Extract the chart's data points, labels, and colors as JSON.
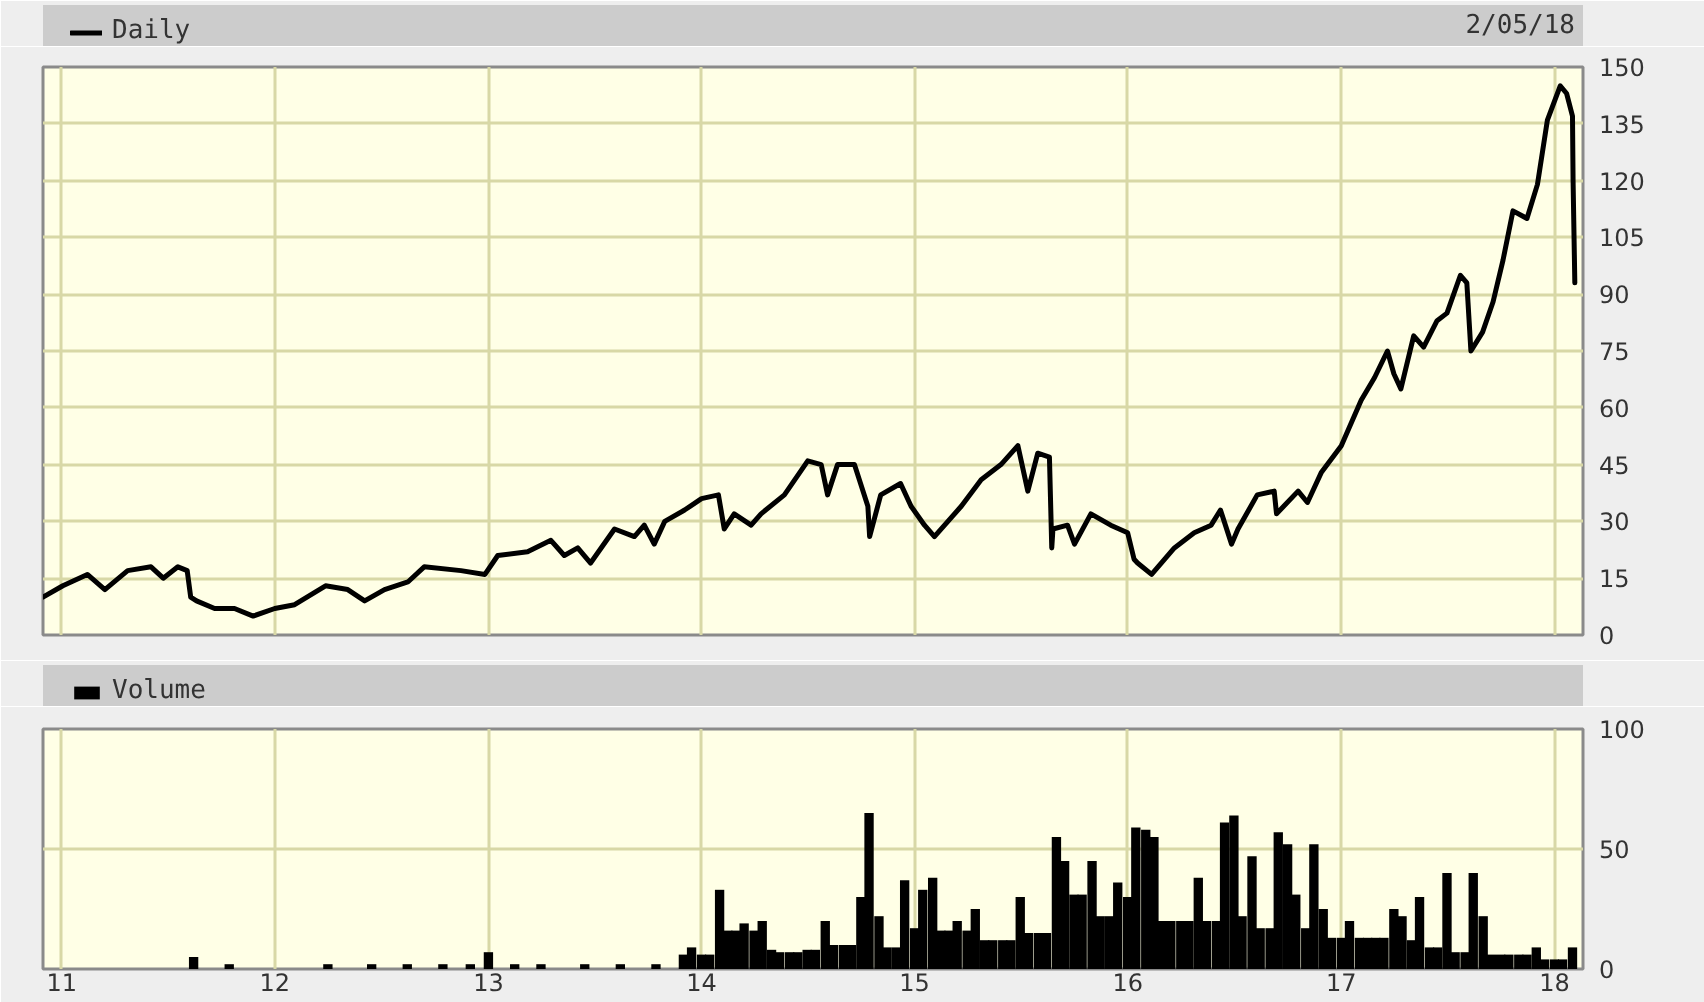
{
  "chart_data": [
    {
      "type": "line",
      "subtitle": "2/05/18",
      "legend": "top left",
      "grid": true,
      "tick_labels": "y",
      "xlim": [
        "2010-11-30",
        "2018-02-19"
      ],
      "xticks": [
        {
          "value": "2011-01-01",
          "label": null
        },
        {
          "value": "2012-01-01",
          "label": null
        },
        {
          "value": "2013-01-01",
          "label": null
        },
        {
          "value": "2014-01-01",
          "label": null
        },
        {
          "value": "2015-01-01",
          "label": null
        },
        {
          "value": "2016-01-01",
          "label": null
        },
        {
          "value": "2017-01-01",
          "label": null
        },
        {
          "value": "2018-01-01",
          "label": null
        }
      ],
      "ylim": [
        0,
        150
      ],
      "yticks": [
        0,
        15,
        30,
        45,
        60,
        75,
        90,
        105,
        120,
        135,
        150
      ],
      "x": [
        "2010-11-30",
        "2011-01-03",
        "2011-02-14",
        "2011-03-16",
        "2011-04-24",
        "2011-06-03",
        "2011-06-24",
        "2011-07-19",
        "2011-08-04",
        "2011-08-10",
        "2011-08-20",
        "2011-09-20",
        "2011-10-24",
        "2011-11-25",
        "2012-01-01",
        "2012-02-04",
        "2012-03-28",
        "2012-05-05",
        "2012-06-03",
        "2012-07-07",
        "2012-08-16",
        "2012-09-13",
        "2012-11-15",
        "2012-12-26",
        "2013-01-17",
        "2013-03-09",
        "2013-04-18",
        "2013-05-11",
        "2013-06-03",
        "2013-06-25",
        "2013-08-05",
        "2013-09-08",
        "2013-09-25",
        "2013-10-12",
        "2013-10-30",
        "2013-12-03",
        "2014-01-01",
        "2014-01-30",
        "2014-02-09",
        "2014-02-26",
        "2014-03-27",
        "2014-04-13",
        "2014-05-23",
        "2014-07-02",
        "2014-07-25",
        "2014-08-05",
        "2014-08-22",
        "2014-09-20",
        "2014-10-13",
        "2014-10-16",
        "2014-11-04",
        "2014-12-08",
        "2014-12-26",
        "2015-01-18",
        "2015-02-04",
        "2015-03-22",
        "2015-04-25",
        "2015-05-29",
        "2015-06-27",
        "2015-07-14",
        "2015-07-31",
        "2015-08-20",
        "2015-08-24",
        "2015-08-26",
        "2015-09-20",
        "2015-10-02",
        "2015-10-30",
        "2015-12-03",
        "2016-01-01",
        "2016-01-12",
        "2016-01-18",
        "2016-02-11",
        "2016-03-21",
        "2016-04-24",
        "2016-05-23",
        "2016-06-08",
        "2016-06-27",
        "2016-07-08",
        "2016-08-10",
        "2016-09-08",
        "2016-09-12",
        "2016-10-19",
        "2016-11-04",
        "2016-11-28",
        "2017-01-01",
        "2017-02-04",
        "2017-02-27",
        "2017-03-21",
        "2017-04-01",
        "2017-04-13",
        "2017-05-05",
        "2017-05-22",
        "2017-06-14",
        "2017-07-01",
        "2017-07-24",
        "2017-08-04",
        "2017-08-11",
        "2017-08-31",
        "2017-09-18",
        "2017-10-05",
        "2017-10-22",
        "2017-11-15",
        "2017-12-03",
        "2017-12-20",
        "2018-01-11",
        "2018-01-22",
        "2018-02-01",
        "2018-02-02",
        "2018-02-05"
      ],
      "series": [
        {
          "name": "Daily",
          "color": "#000000",
          "values": [
            10,
            13,
            16,
            12,
            17,
            18,
            15,
            18,
            17,
            10,
            9,
            7,
            7,
            5,
            7,
            8,
            13,
            12,
            9,
            12,
            14,
            18,
            17,
            16,
            21,
            22,
            25,
            21,
            23,
            19,
            28,
            26,
            29,
            24,
            30,
            33,
            36,
            37,
            28,
            32,
            29,
            32,
            37,
            46,
            45,
            37,
            45,
            45,
            34,
            26,
            37,
            40,
            34,
            29,
            26,
            34,
            41,
            45,
            50,
            38,
            48,
            47,
            23,
            28,
            29,
            24,
            32,
            29,
            27,
            20,
            19,
            16,
            23,
            27,
            29,
            33,
            24,
            28,
            37,
            38,
            32,
            38,
            35,
            43,
            50,
            62,
            68,
            75,
            69,
            65,
            79,
            76,
            83,
            85,
            95,
            93,
            75,
            80,
            88,
            99,
            112,
            110,
            119,
            136,
            145,
            143,
            137,
            120,
            93
          ]
        }
      ]
    },
    {
      "type": "bar",
      "legend": "top left",
      "grid": true,
      "xlim": [
        "2010-11-30",
        "2018-02-19"
      ],
      "xticks": [
        {
          "value": "2011-01-01",
          "label": "11"
        },
        {
          "value": "2012-01-01",
          "label": "12"
        },
        {
          "value": "2013-01-01",
          "label": "13"
        },
        {
          "value": "2014-01-01",
          "label": "14"
        },
        {
          "value": "2015-01-01",
          "label": "15"
        },
        {
          "value": "2016-01-01",
          "label": "16"
        },
        {
          "value": "2017-01-01",
          "label": "17"
        },
        {
          "value": "2018-01-01",
          "label": "18"
        }
      ],
      "ylim": [
        0,
        100
      ],
      "yticks": [
        0,
        50,
        100
      ],
      "x": [
        "2011-08-15",
        "2011-10-15",
        "2012-04-01",
        "2012-06-15",
        "2012-08-15",
        "2012-10-15",
        "2012-12-01",
        "2013-01-01",
        "2013-02-15",
        "2013-04-01",
        "2013-06-15",
        "2013-08-15",
        "2013-10-15",
        "2013-12-01",
        "2013-12-15",
        "2014-01-01",
        "2014-01-15",
        "2014-02-01",
        "2014-02-15",
        "2014-03-01",
        "2014-03-15",
        "2014-04-01",
        "2014-04-15",
        "2014-05-01",
        "2014-05-15",
        "2014-06-01",
        "2014-06-15",
        "2014-07-01",
        "2014-07-15",
        "2014-08-01",
        "2014-08-15",
        "2014-09-01",
        "2014-09-15",
        "2014-10-01",
        "2014-10-15",
        "2014-11-01",
        "2014-11-15",
        "2014-12-01",
        "2014-12-15",
        "2015-01-01",
        "2015-01-15",
        "2015-02-01",
        "2015-02-15",
        "2015-03-01",
        "2015-03-15",
        "2015-04-01",
        "2015-04-15",
        "2015-05-01",
        "2015-05-15",
        "2015-06-01",
        "2015-06-15",
        "2015-07-01",
        "2015-07-15",
        "2015-08-01",
        "2015-08-15",
        "2015-09-01",
        "2015-09-15",
        "2015-10-01",
        "2015-10-15",
        "2015-11-01",
        "2015-11-15",
        "2015-12-01",
        "2015-12-15",
        "2016-01-01",
        "2016-01-15",
        "2016-02-01",
        "2016-02-15",
        "2016-03-01",
        "2016-03-15",
        "2016-04-01",
        "2016-04-15",
        "2016-05-01",
        "2016-05-15",
        "2016-06-01",
        "2016-06-15",
        "2016-07-01",
        "2016-07-15",
        "2016-08-01",
        "2016-08-15",
        "2016-09-01",
        "2016-09-15",
        "2016-10-01",
        "2016-10-15",
        "2016-11-01",
        "2016-11-15",
        "2016-12-01",
        "2016-12-15",
        "2017-01-01",
        "2017-01-15",
        "2017-02-01",
        "2017-02-15",
        "2017-03-01",
        "2017-03-15",
        "2017-04-01",
        "2017-04-15",
        "2017-05-01",
        "2017-05-15",
        "2017-06-01",
        "2017-06-15",
        "2017-07-01",
        "2017-07-15",
        "2017-08-01",
        "2017-08-15",
        "2017-09-01",
        "2017-09-15",
        "2017-10-01",
        "2017-10-15",
        "2017-11-01",
        "2017-11-15",
        "2017-12-01",
        "2017-12-15",
        "2018-01-01",
        "2018-01-15",
        "2018-02-01"
      ],
      "series": [
        {
          "name": "Volume",
          "color": "#000000",
          "values": [
            5,
            2,
            2,
            2,
            2,
            2,
            2,
            7,
            2,
            2,
            2,
            2,
            2,
            6,
            9,
            6,
            6,
            33,
            16,
            16,
            19,
            16,
            20,
            8,
            7,
            7,
            7,
            8,
            8,
            20,
            10,
            10,
            10,
            30,
            65,
            22,
            9,
            9,
            37,
            17,
            33,
            38,
            16,
            16,
            20,
            16,
            25,
            12,
            12,
            12,
            12,
            30,
            15,
            15,
            15,
            55,
            45,
            31,
            31,
            45,
            22,
            22,
            36,
            30,
            59,
            58,
            55,
            20,
            20,
            20,
            20,
            38,
            20,
            20,
            61,
            64,
            22,
            47,
            17,
            17,
            57,
            52,
            31,
            17,
            52,
            25,
            13,
            13,
            20,
            13,
            13,
            13,
            13,
            25,
            22,
            12,
            30,
            9,
            9,
            40,
            7,
            7,
            40,
            22,
            6,
            6,
            6,
            6,
            6,
            9,
            4,
            4,
            4,
            9
          ]
        }
      ]
    }
  ]
}
